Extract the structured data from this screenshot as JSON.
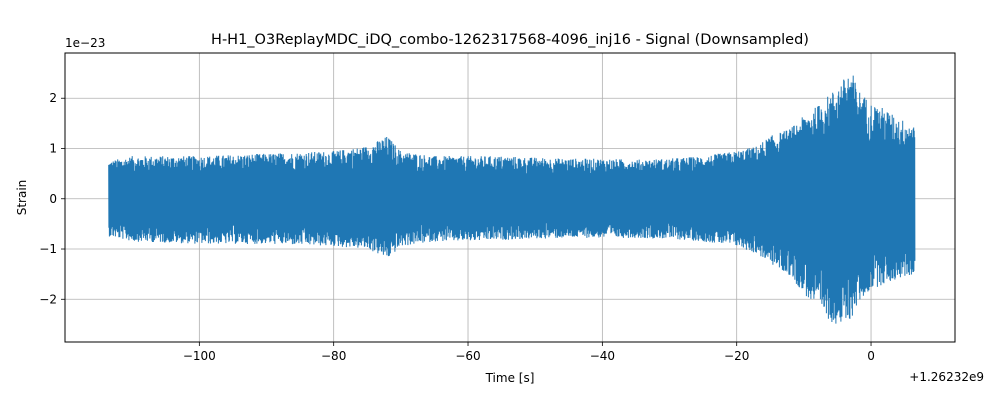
{
  "chart_data": {
    "type": "line",
    "title": "H-H1_O3ReplayMDC_iDQ_combo-1262317568-4096_inj16 - Signal (Downsampled)",
    "xlabel": "Time [s]",
    "ylabel": "Strain",
    "x_offset_label": "+1.26232e9",
    "y_scale_label": "1e−23",
    "xlim": [
      -120,
      12.5
    ],
    "ylim": [
      -2.85,
      2.9
    ],
    "x_ticks": [
      -100,
      -80,
      -60,
      -40,
      -20,
      0
    ],
    "x_tick_labels": [
      "−100",
      "−80",
      "−60",
      "−40",
      "−20",
      "0"
    ],
    "y_ticks": [
      -2,
      -1,
      0,
      1,
      2
    ],
    "y_tick_labels": [
      "−2",
      "−1",
      "0",
      "1",
      "2"
    ],
    "grid": true,
    "series": [
      {
        "color": "#1f77b4",
        "x_range": [
          -113.5,
          6.5
        ],
        "envelope": {
          "x": [
            -113.5,
            -110,
            -100,
            -90,
            -80,
            -75,
            -72,
            -70,
            -65,
            -60,
            -55,
            -50,
            -45,
            -40,
            -35,
            -30,
            -25,
            -20,
            -17,
            -15,
            -12,
            -10,
            -8,
            -6,
            -4,
            -3,
            -2,
            0,
            2,
            4,
            6.5
          ],
          "upper": [
            0.75,
            0.85,
            0.85,
            0.9,
            0.95,
            1.05,
            1.25,
            0.95,
            0.85,
            0.85,
            0.85,
            0.82,
            0.8,
            0.8,
            0.78,
            0.8,
            0.85,
            0.95,
            1.05,
            1.25,
            1.4,
            1.65,
            1.85,
            2.1,
            2.4,
            2.6,
            2.2,
            1.9,
            1.8,
            1.6,
            1.5
          ],
          "lower": [
            -0.75,
            -0.85,
            -0.9,
            -0.9,
            -0.95,
            -1.0,
            -1.2,
            -0.95,
            -0.85,
            -0.85,
            -0.82,
            -0.8,
            -0.78,
            -0.78,
            -0.78,
            -0.8,
            -0.85,
            -0.95,
            -1.1,
            -1.3,
            -1.55,
            -1.9,
            -2.2,
            -2.45,
            -2.55,
            -2.4,
            -2.1,
            -1.8,
            -1.7,
            -1.6,
            -1.5
          ]
        }
      }
    ]
  }
}
